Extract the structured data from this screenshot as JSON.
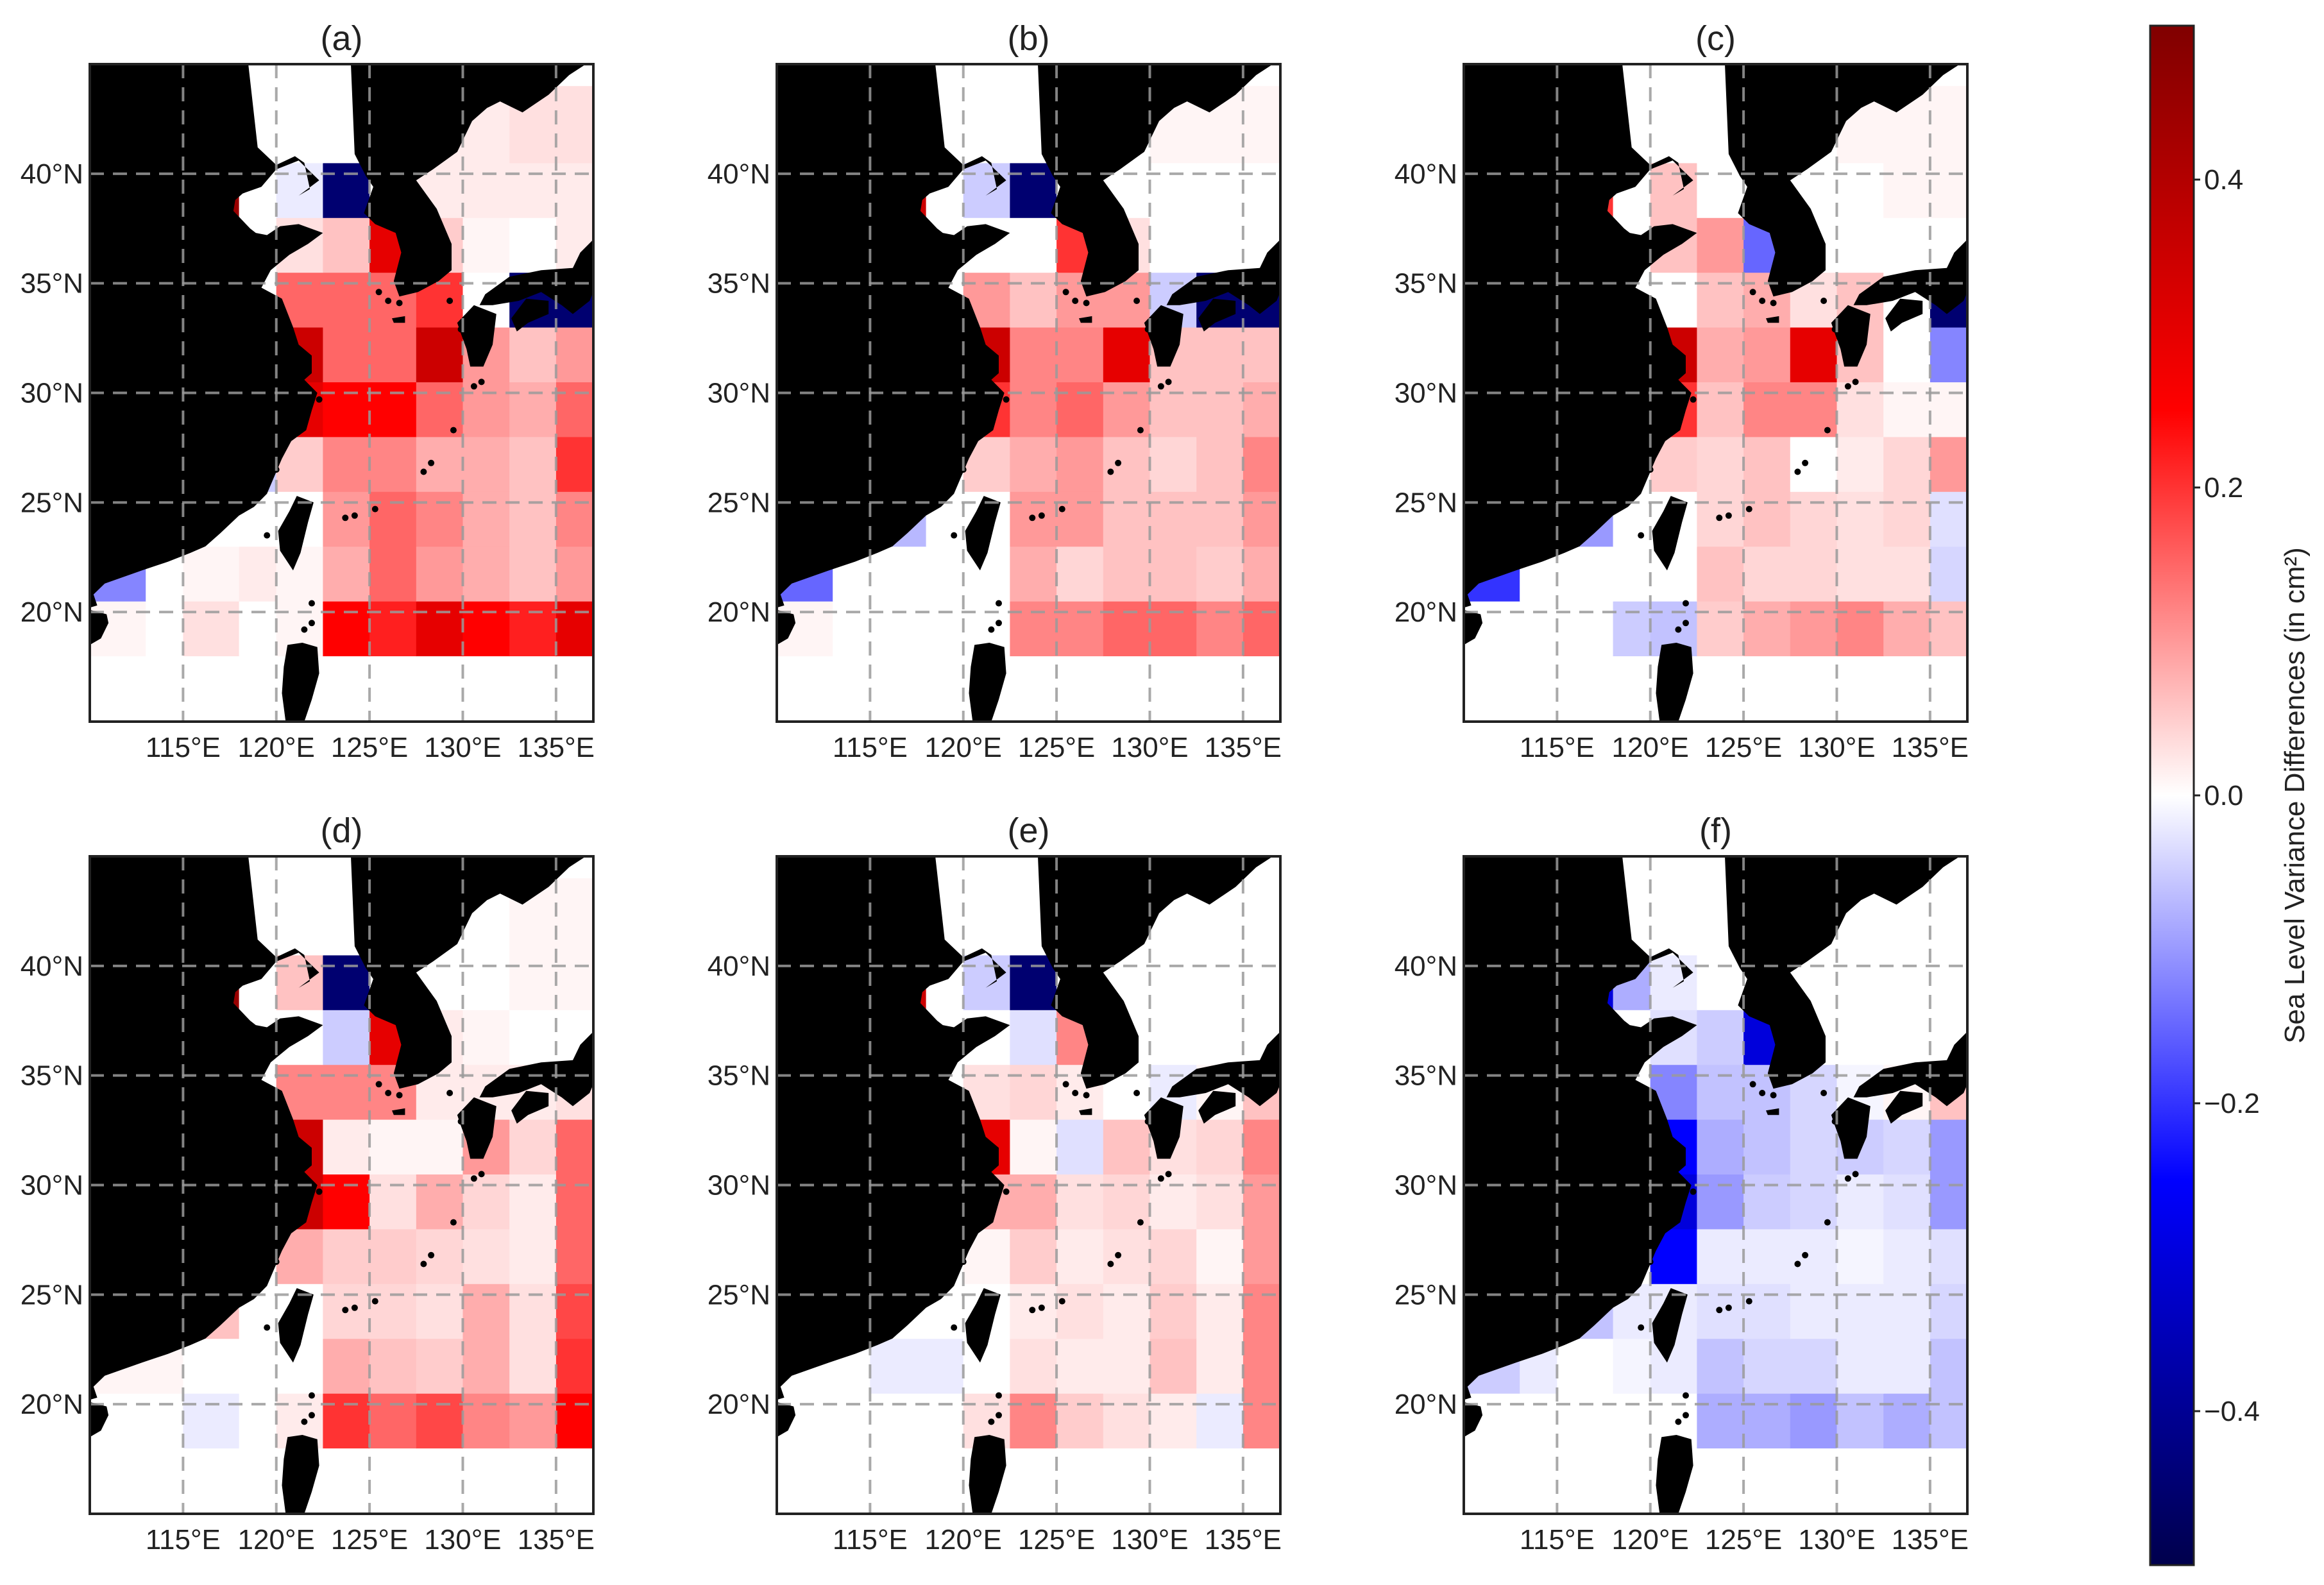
{
  "figure": {
    "colorbar": {
      "label": "Sea Level Variance Differences (in cm²)",
      "ticks": [
        "0.4",
        "0.2",
        "0.0",
        "−0.2",
        "−0.4"
      ],
      "tick_values": [
        0.4,
        0.2,
        0.0,
        -0.2,
        -0.4
      ],
      "range": [
        -0.5,
        0.5
      ],
      "colormap": "seismic",
      "colors": {
        "min": "#00004c",
        "mid": "#ffffff",
        "max": "#800000"
      }
    },
    "colors": {
      "land": "#000000",
      "gridline": "#9a9a9a",
      "frame": "#222222"
    }
  },
  "chart_data": {
    "type": "heatmap",
    "lon_range": [
      110,
      137
    ],
    "lat_range": [
      15,
      45
    ],
    "lon_ticks": [
      "115°E",
      "120°E",
      "125°E",
      "130°E",
      "135°E"
    ],
    "lat_ticks": [
      "20°N",
      "25°N",
      "30°N",
      "35°N",
      "40°N"
    ],
    "grid_lines": true,
    "cell_lon_edges": [
      110,
      113,
      115,
      118,
      120,
      122.5,
      125,
      127.5,
      130,
      132.5,
      135,
      137
    ],
    "cell_lat_edges": [
      18,
      20.5,
      23,
      25.5,
      28,
      30.5,
      33,
      35.5,
      38,
      40.5,
      44
    ],
    "panels": [
      {
        "label": "(a)",
        "values": [
          [
            0.01,
            0.0,
            0.03,
            0.0,
            0.01,
            0.25,
            0.22,
            0.3,
            0.25,
            0.22,
            0.3
          ],
          [
            -0.12,
            0.0,
            0.01,
            0.02,
            0.01,
            0.08,
            0.15,
            0.1,
            0.08,
            0.06,
            0.1
          ],
          [
            0.0,
            -0.02,
            0.0,
            0.0,
            0.0,
            0.1,
            0.15,
            0.12,
            0.08,
            0.06,
            0.12
          ],
          [
            0.0,
            0.0,
            0.0,
            -0.05,
            0.05,
            0.12,
            0.12,
            0.08,
            0.08,
            0.06,
            0.2
          ],
          [
            0.0,
            0.0,
            0.0,
            0.0,
            0.3,
            0.25,
            0.25,
            0.15,
            0.1,
            0.08,
            0.15
          ],
          [
            0.0,
            0.0,
            0.0,
            0.0,
            0.35,
            0.15,
            0.15,
            0.35,
            0.1,
            0.06,
            0.1
          ],
          [
            0.0,
            0.0,
            0.0,
            0.0,
            0.15,
            0.15,
            0.15,
            0.2,
            0.0,
            -0.45,
            -0.45
          ],
          [
            0.0,
            0.0,
            0.0,
            0.0,
            0.03,
            0.06,
            0.3,
            0.05,
            0.01,
            0.0,
            0.02
          ],
          [
            0.0,
            0.0,
            0.45,
            0.0,
            -0.02,
            -0.45,
            0.0,
            0.02,
            0.02,
            0.02,
            0.02
          ],
          [
            0.0,
            0.0,
            0.0,
            0.0,
            0.0,
            0.0,
            0.0,
            0.02,
            0.02,
            0.03,
            0.03
          ]
        ]
      },
      {
        "label": "(b)",
        "values": [
          [
            0.01,
            0.0,
            0.0,
            0.0,
            0.0,
            0.12,
            0.12,
            0.15,
            0.15,
            0.12,
            0.15
          ],
          [
            -0.15,
            0.0,
            0.0,
            0.0,
            0.0,
            0.08,
            0.04,
            0.06,
            0.06,
            0.05,
            0.08
          ],
          [
            0.0,
            -0.03,
            -0.07,
            0.0,
            0.0,
            0.1,
            0.1,
            0.06,
            0.06,
            0.06,
            0.1
          ],
          [
            0.0,
            0.0,
            0.0,
            0.0,
            0.05,
            0.08,
            0.1,
            0.06,
            0.04,
            0.06,
            0.12
          ],
          [
            0.0,
            0.0,
            0.0,
            0.0,
            0.2,
            0.12,
            0.15,
            0.1,
            0.06,
            0.06,
            0.08
          ],
          [
            0.0,
            0.0,
            0.0,
            0.0,
            0.35,
            0.12,
            0.12,
            0.3,
            0.06,
            0.06,
            0.06
          ],
          [
            0.0,
            0.0,
            0.0,
            0.0,
            0.1,
            0.06,
            0.1,
            0.1,
            -0.05,
            -0.45,
            -0.45
          ],
          [
            0.0,
            0.0,
            0.0,
            0.0,
            0.0,
            0.0,
            0.2,
            0.03,
            0.0,
            0.0,
            0.0
          ],
          [
            0.0,
            0.0,
            0.35,
            0.0,
            -0.05,
            -0.45,
            0.0,
            0.0,
            0.0,
            0.0,
            0.0
          ],
          [
            0.0,
            0.0,
            0.0,
            0.0,
            0.0,
            0.0,
            0.0,
            0.0,
            0.01,
            0.01,
            0.01
          ]
        ]
      },
      {
        "label": "(c)",
        "values": [
          [
            0.0,
            0.0,
            0.0,
            -0.05,
            -0.06,
            0.05,
            0.08,
            0.1,
            0.12,
            0.08,
            0.06
          ],
          [
            -0.2,
            0.0,
            0.0,
            0.0,
            0.0,
            0.06,
            0.04,
            0.04,
            0.03,
            0.03,
            -0.04
          ],
          [
            0.0,
            0.03,
            -0.1,
            0.0,
            0.0,
            0.04,
            0.06,
            0.04,
            0.03,
            0.04,
            -0.03
          ],
          [
            0.0,
            0.0,
            0.0,
            0.0,
            0.05,
            0.04,
            0.06,
            0.0,
            0.02,
            0.04,
            0.1
          ],
          [
            0.0,
            0.0,
            0.0,
            0.0,
            0.2,
            0.06,
            0.12,
            0.12,
            0.03,
            0.01,
            0.01
          ],
          [
            0.0,
            0.0,
            0.0,
            0.0,
            0.35,
            0.08,
            0.1,
            0.3,
            0.06,
            0.0,
            -0.12
          ],
          [
            0.0,
            0.0,
            0.0,
            0.0,
            0.0,
            0.06,
            0.08,
            0.03,
            0.06,
            0.0,
            -0.45
          ],
          [
            0.0,
            0.0,
            0.0,
            0.0,
            0.06,
            0.1,
            -0.15,
            0.0,
            0.0,
            0.0,
            0.0
          ],
          [
            0.0,
            0.0,
            0.2,
            0.0,
            0.06,
            0.0,
            0.0,
            0.0,
            0.0,
            0.01,
            0.01
          ],
          [
            0.0,
            0.0,
            0.0,
            0.0,
            0.0,
            0.0,
            0.0,
            0.0,
            0.01,
            0.01,
            0.01
          ]
        ]
      },
      {
        "label": "(d)",
        "values": [
          [
            0.0,
            0.0,
            -0.02,
            0.0,
            0.02,
            0.2,
            0.15,
            0.18,
            0.12,
            0.1,
            0.25
          ],
          [
            0.01,
            0.01,
            0.0,
            0.0,
            0.0,
            0.08,
            0.06,
            0.05,
            0.08,
            0.03,
            0.2
          ],
          [
            0.05,
            -0.07,
            0.06,
            0.0,
            0.0,
            0.04,
            0.04,
            0.03,
            0.08,
            0.03,
            0.18
          ],
          [
            0.0,
            0.0,
            0.0,
            0.0,
            0.08,
            0.05,
            0.05,
            0.04,
            0.03,
            0.02,
            0.15
          ],
          [
            0.0,
            0.0,
            0.0,
            0.0,
            0.35,
            0.25,
            0.03,
            0.08,
            0.04,
            0.02,
            0.15
          ],
          [
            0.0,
            0.0,
            0.0,
            0.0,
            0.35,
            0.02,
            0.01,
            0.01,
            0.1,
            0.04,
            0.15
          ],
          [
            0.0,
            0.0,
            0.0,
            0.0,
            0.12,
            0.12,
            0.12,
            0.02,
            0.02,
            0.02,
            0.03
          ],
          [
            0.0,
            0.0,
            0.0,
            0.0,
            0.0,
            -0.05,
            0.3,
            0.02,
            0.01,
            0.0,
            0.0
          ],
          [
            0.0,
            0.0,
            0.45,
            0.0,
            0.06,
            -0.45,
            0.0,
            0.0,
            0.0,
            0.01,
            0.01
          ],
          [
            0.0,
            0.0,
            0.0,
            0.0,
            0.0,
            0.0,
            0.0,
            0.0,
            0.0,
            0.01,
            0.01
          ]
        ]
      },
      {
        "label": "(e)",
        "values": [
          [
            0.0,
            0.0,
            0.0,
            0.0,
            0.03,
            0.12,
            0.05,
            0.03,
            0.02,
            -0.02,
            0.12
          ],
          [
            0.0,
            0.0,
            -0.02,
            -0.02,
            0.0,
            0.03,
            0.02,
            0.02,
            0.06,
            0.02,
            0.12
          ],
          [
            0.0,
            -0.15,
            0.0,
            0.0,
            0.0,
            0.02,
            0.03,
            0.02,
            0.05,
            0.02,
            0.12
          ],
          [
            0.0,
            0.0,
            0.0,
            0.0,
            0.01,
            0.05,
            0.02,
            0.03,
            0.04,
            0.01,
            0.1
          ],
          [
            0.0,
            0.0,
            0.0,
            0.0,
            0.08,
            0.08,
            0.03,
            0.04,
            0.02,
            0.03,
            0.1
          ],
          [
            0.0,
            0.0,
            0.0,
            0.0,
            0.3,
            0.01,
            -0.03,
            0.06,
            0.03,
            0.04,
            0.12
          ],
          [
            0.0,
            0.0,
            0.0,
            0.0,
            0.03,
            0.04,
            0.02,
            0.0,
            -0.02,
            0.01,
            0.06
          ],
          [
            0.0,
            0.0,
            0.0,
            0.0,
            0.0,
            -0.03,
            0.12,
            0.0,
            0.0,
            0.0,
            0.0
          ],
          [
            0.0,
            0.0,
            0.35,
            0.0,
            -0.05,
            -0.45,
            0.0,
            0.0,
            0.0,
            0.0,
            0.0
          ],
          [
            0.0,
            0.0,
            0.0,
            0.0,
            0.0,
            0.0,
            0.0,
            0.0,
            0.0,
            0.0,
            0.0
          ]
        ]
      },
      {
        "label": "(f)",
        "values": [
          [
            0.0,
            0.0,
            0.0,
            0.0,
            0.0,
            -0.08,
            -0.08,
            -0.1,
            -0.06,
            -0.08,
            -0.06
          ],
          [
            -0.05,
            -0.02,
            0.0,
            -0.01,
            -0.02,
            -0.06,
            -0.04,
            -0.04,
            -0.02,
            -0.02,
            -0.06
          ],
          [
            -0.18,
            0.0,
            -0.06,
            -0.02,
            -0.02,
            -0.03,
            -0.03,
            -0.02,
            -0.02,
            -0.02,
            -0.04
          ],
          [
            0.0,
            0.0,
            0.0,
            0.0,
            -0.25,
            -0.02,
            -0.02,
            -0.02,
            -0.01,
            -0.02,
            -0.03
          ],
          [
            0.0,
            0.0,
            0.0,
            0.0,
            -0.3,
            -0.1,
            -0.05,
            -0.04,
            -0.02,
            -0.03,
            -0.1
          ],
          [
            0.0,
            0.0,
            0.0,
            0.0,
            -0.25,
            -0.08,
            -0.06,
            -0.04,
            -0.05,
            -0.04,
            -0.1
          ],
          [
            0.0,
            0.0,
            0.0,
            0.0,
            -0.12,
            -0.06,
            -0.06,
            -0.04,
            -0.01,
            0.01,
            0.06
          ],
          [
            0.0,
            0.0,
            0.0,
            0.0,
            -0.03,
            -0.05,
            -0.3,
            0.0,
            0.0,
            0.0,
            0.0
          ],
          [
            0.0,
            0.0,
            -0.3,
            -0.08,
            -0.02,
            0.0,
            0.0,
            0.0,
            0.0,
            0.0,
            0.0
          ],
          [
            0.0,
            0.0,
            0.0,
            0.0,
            0.0,
            0.0,
            0.0,
            0.0,
            0.0,
            0.0,
            0.0
          ]
        ]
      }
    ]
  }
}
